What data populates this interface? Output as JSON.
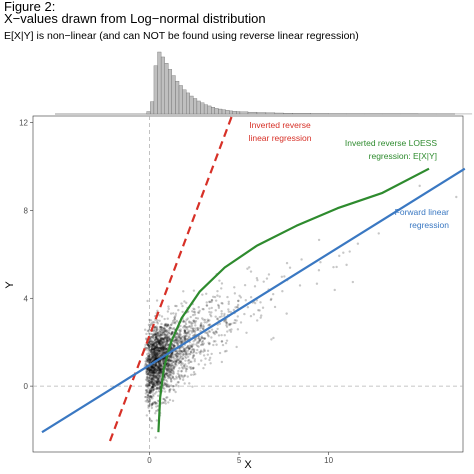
{
  "header": {
    "line1": "Figure 2:",
    "line2": "X−values drawn from Log−normal distribution",
    "line3": "E[X|Y] is non−linear (and can NOT be found using reverse linear regression)"
  },
  "chart_data": [
    {
      "type": "histogram",
      "description_variable": "X",
      "x": [
        -0.15,
        0.05,
        0.25,
        0.45,
        0.65,
        0.85,
        1.05,
        1.25,
        1.45,
        1.65,
        1.85,
        2.05,
        2.25,
        2.45,
        2.65,
        2.85,
        3.05,
        3.25,
        3.45,
        3.65,
        3.85,
        4.05,
        4.25,
        4.45,
        4.65,
        4.85,
        5.05,
        5.5,
        6.0,
        6.5,
        7.0,
        7.5,
        8.0,
        9.0,
        10.0,
        11.0,
        12.0,
        13.0,
        14.0,
        15.0,
        16.0,
        17.0
      ],
      "values": [
        4,
        20,
        78,
        100,
        92,
        82,
        72,
        62,
        53,
        46,
        39,
        34,
        29,
        25,
        21,
        18,
        15,
        13,
        11,
        9,
        8,
        7,
        6,
        5,
        4.5,
        4,
        3.5,
        3,
        2.4,
        2,
        1.6,
        1.3,
        1.1,
        0.8,
        0.6,
        0.5,
        0.4,
        0.3,
        0.25,
        0.2,
        0.15,
        0.1
      ],
      "xlim": [
        -6.5,
        17.5
      ]
    },
    {
      "type": "scatter",
      "xlabel": "X",
      "ylabel": "Y",
      "xlim": [
        -6.5,
        17.5
      ],
      "ylim": [
        -3,
        12.3
      ],
      "xticks": [
        0,
        5,
        10
      ],
      "yticks": [
        0,
        4,
        8,
        12
      ],
      "reference_lines": {
        "x": 0,
        "y": 0,
        "style": "dashed"
      },
      "points_summary": "dense cloud of semi-transparent points concentrated near X=0–2, Y=-1–4, trailing sparsely to X≈15, Y≈8",
      "series": [
        {
          "name": "Inverted reverse linear regression",
          "color": "#d73027",
          "style": "dashed",
          "x": [
            -2.2,
            4.6
          ],
          "y": [
            -2.5,
            12.3
          ]
        },
        {
          "name": "Inverted reverse LOESS regression: E[X|Y]",
          "color": "#2e8b2e",
          "style": "solid",
          "x": [
            0.5,
            0.6,
            0.8,
            1.2,
            1.8,
            2.8,
            4.2,
            6.0,
            8.2,
            10.5,
            13.0,
            15.6
          ],
          "y": [
            -2.1,
            -0.5,
            0.8,
            2.0,
            3.1,
            4.3,
            5.4,
            6.4,
            7.3,
            8.1,
            8.8,
            9.9
          ]
        },
        {
          "name": "Forward linear regression",
          "color": "#3a78c2",
          "style": "solid",
          "x": [
            -6.0,
            17.6
          ],
          "y": [
            -2.1,
            9.9
          ]
        }
      ],
      "annotations": {
        "red_line1": "Inverted reverse",
        "red_line2": "linear regression",
        "green_line1": "Inverted reverse LOESS",
        "green_line2": "regression: E[X|Y]",
        "blue_line1": "Forward linear",
        "blue_line2": "regression"
      },
      "colors": {
        "red": "#d73027",
        "green": "#2e8b2e",
        "blue": "#3a78c2",
        "points": "#000000",
        "histogram_fill": "#bfbfbf"
      }
    }
  ]
}
